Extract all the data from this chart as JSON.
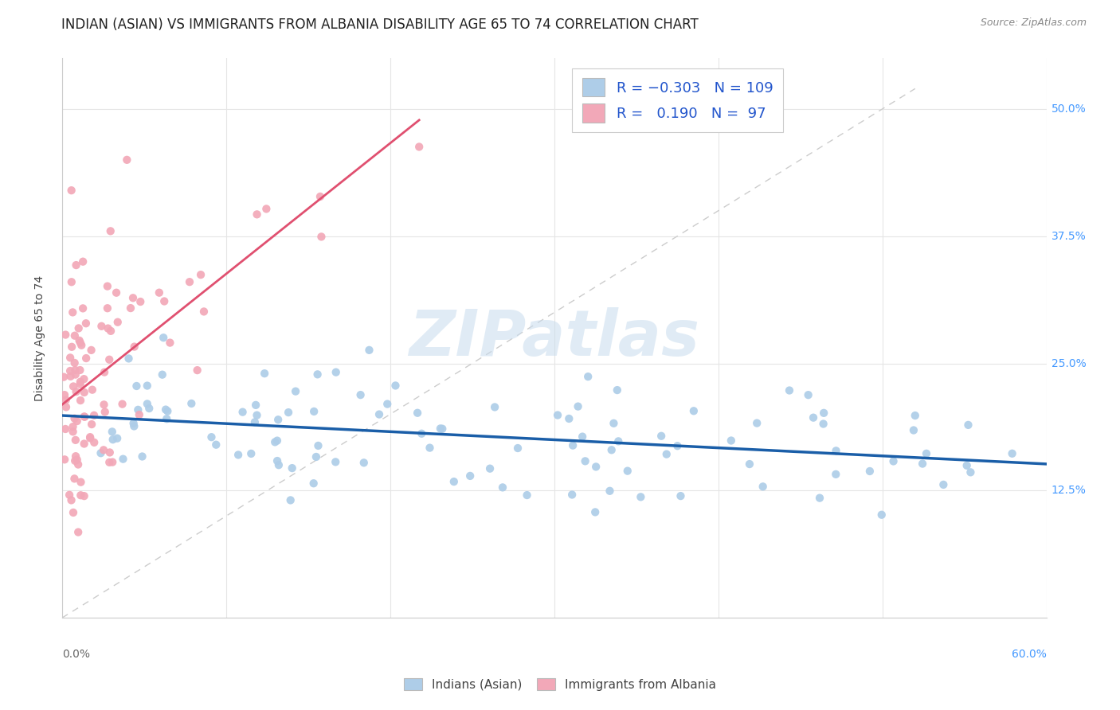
{
  "title": "INDIAN (ASIAN) VS IMMIGRANTS FROM ALBANIA DISABILITY AGE 65 TO 74 CORRELATION CHART",
  "source": "Source: ZipAtlas.com",
  "ylabel": "Disability Age 65 to 74",
  "xlim": [
    0.0,
    0.6
  ],
  "ylim": [
    0.0,
    0.55
  ],
  "color_blue": "#AECDE8",
  "color_pink": "#F2A8B8",
  "trendline_blue_color": "#1A5EA8",
  "trendline_pink_color": "#E05070",
  "diag_color": "#CCCCCC",
  "watermark": "ZIPatlas",
  "title_fontsize": 12,
  "label_fontsize": 10,
  "tick_fontsize": 10,
  "ytick_right_color": "#4499FF",
  "legend_label_color": "#2255CC",
  "source_color": "#888888",
  "bottom_legend_color": "#444444",
  "grid_color": "#E5E5E5",
  "spine_color": "#CCCCCC"
}
